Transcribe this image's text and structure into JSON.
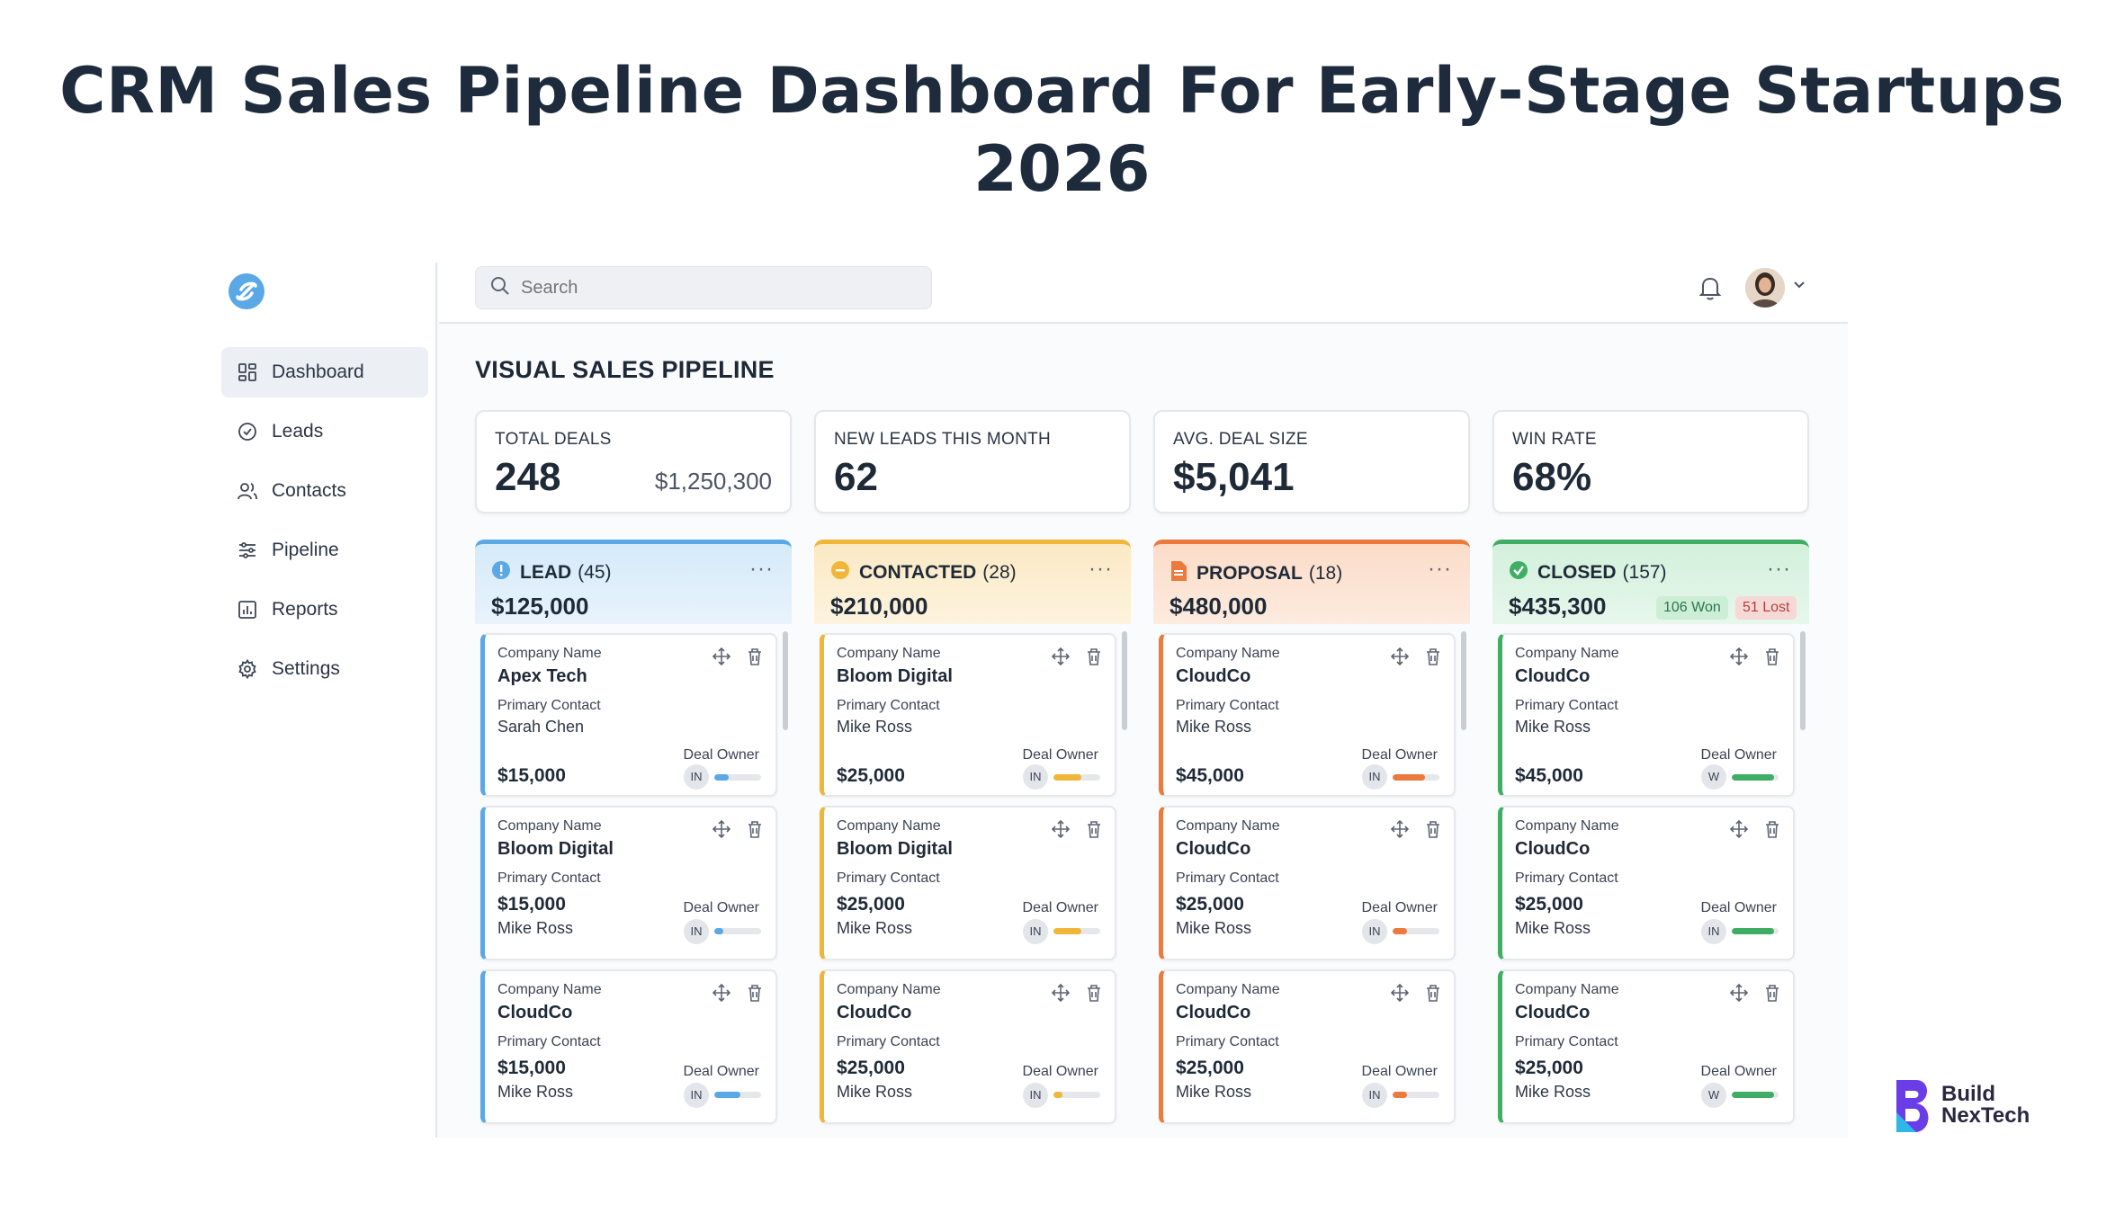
{
  "page_title": "CRM Sales Pipeline Dashboard For Early-Stage Startups 2026",
  "colors": {
    "lead": "#5aa8e6",
    "contacted": "#f0b63a",
    "proposal": "#ec7a3c",
    "closed": "#3fae64"
  },
  "sidebar": {
    "items": [
      {
        "label": "Dashboard",
        "icon": "grid-icon"
      },
      {
        "label": "Leads",
        "icon": "check-circle-icon"
      },
      {
        "label": "Contacts",
        "icon": "users-icon"
      },
      {
        "label": "Pipeline",
        "icon": "sliders-icon"
      },
      {
        "label": "Reports",
        "icon": "chart-icon"
      },
      {
        "label": "Settings",
        "icon": "gear-icon"
      }
    ]
  },
  "search": {
    "placeholder": "Search"
  },
  "main": {
    "heading": "VISUAL SALES PIPELINE"
  },
  "stats": [
    {
      "label": "TOTAL DEALS",
      "value": "248",
      "sub": "$1,250,300"
    },
    {
      "label": "NEW LEADS THIS MONTH",
      "value": "62"
    },
    {
      "label": "AVG. DEAL SIZE",
      "value": "$5,041"
    },
    {
      "label": "WIN RATE",
      "value": "68%"
    }
  ],
  "columns": [
    {
      "name": "LEAD",
      "count": "(45)",
      "amount": "$125,000",
      "dots": "···",
      "cards": [
        {
          "cn_label": "Company Name",
          "company": "Apex Tech",
          "pc_label": "Primary Contact",
          "contact": "Sarah Chen",
          "do_label": "Deal Owner",
          "deal": "$15,000",
          "owner": "IN",
          "progress": 0.3
        },
        {
          "cn_label": "Company Name",
          "company": "Bloom Digital",
          "pc_label": "Primary Contact",
          "contact": "Mike Ross",
          "do_label": "Deal Owner",
          "deal": "$15,000",
          "owner": "IN",
          "progress": 0.2
        },
        {
          "cn_label": "Company Name",
          "company": "CloudCo",
          "pc_label": "Primary Contact",
          "contact": "Mike Ross",
          "do_label": "Deal Owner",
          "deal": "$15,000",
          "owner": "IN",
          "progress": 0.55
        }
      ]
    },
    {
      "name": "CONTACTED",
      "count": "(28)",
      "amount": "$210,000",
      "dots": "···",
      "cards": [
        {
          "cn_label": "Company Name",
          "company": "Bloom Digital",
          "pc_label": "Primary Contact",
          "contact": "Mike Ross",
          "do_label": "Deal Owner",
          "deal": "$25,000",
          "owner": "IN",
          "progress": 0.6
        },
        {
          "cn_label": "Company Name",
          "company": "Bloom Digital",
          "pc_label": "Primary Contact",
          "contact": "Mike Ross",
          "do_label": "Deal Owner",
          "deal": "$25,000",
          "owner": "IN",
          "progress": 0.6
        },
        {
          "cn_label": "Company Name",
          "company": "CloudCo",
          "pc_label": "Primary Contact",
          "contact": "Mike Ross",
          "do_label": "Deal Owner",
          "deal": "$25,000",
          "owner": "IN",
          "progress": 0.2
        }
      ]
    },
    {
      "name": "PROPOSAL",
      "count": "(18)",
      "amount": "$480,000",
      "dots": "···",
      "cards": [
        {
          "cn_label": "Company Name",
          "company": "CloudCo",
          "pc_label": "Primary Contact",
          "contact": "Mike Ross",
          "do_label": "Deal Owner",
          "deal": "$45,000",
          "owner": "IN",
          "progress": 0.7
        },
        {
          "cn_label": "Company Name",
          "company": "CloudCo",
          "pc_label": "Primary Contact",
          "contact": "Mike Ross",
          "do_label": "Deal Owner",
          "deal": "$25,000",
          "owner": "IN",
          "progress": 0.3
        },
        {
          "cn_label": "Company Name",
          "company": "CloudCo",
          "pc_label": "Primary Contact",
          "contact": "Mike Ross",
          "do_label": "Deal Owner",
          "deal": "$25,000",
          "owner": "IN",
          "progress": 0.3
        }
      ]
    },
    {
      "name": "CLOSED",
      "count": "(157)",
      "amount": "$435,300",
      "dots": "···",
      "won": "106 Won",
      "lost": "51 Lost",
      "cards": [
        {
          "cn_label": "Company Name",
          "company": "CloudCo",
          "pc_label": "Primary Contact",
          "contact": "Mike Ross",
          "do_label": "Deal Owner",
          "deal": "$45,000",
          "owner": "W",
          "progress": 0.9
        },
        {
          "cn_label": "Company Name",
          "company": "CloudCo",
          "pc_label": "Primary Contact",
          "contact": "Mike Ross",
          "do_label": "Deal Owner",
          "deal": "$25,000",
          "owner": "IN",
          "progress": 0.9
        },
        {
          "cn_label": "Company Name",
          "company": "CloudCo",
          "pc_label": "Primary Contact",
          "contact": "Mike Ross",
          "do_label": "Deal Owner",
          "deal": "$25,000",
          "owner": "W",
          "progress": 0.9
        }
      ]
    }
  ],
  "brand": {
    "line1": "Build",
    "line2": "NexTech"
  }
}
